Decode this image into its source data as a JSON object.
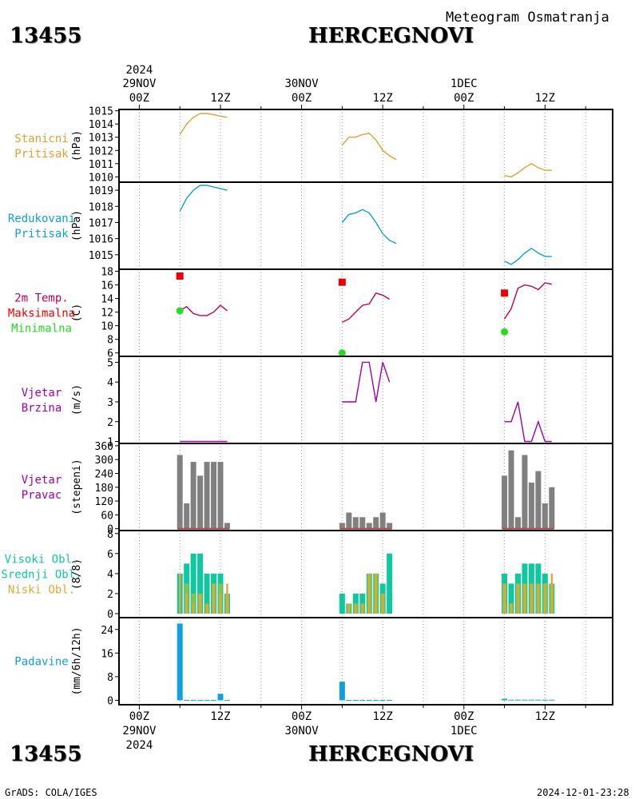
{
  "header": {
    "station_id": "13455",
    "station_name": "HERCEGNOVI",
    "subtitle": "Meteogram Osmatranja"
  },
  "footer": {
    "credit": "GrADS: COLA/IGES",
    "timestamp": "2024-12-01-23:28"
  },
  "colors": {
    "stanicni": "#e0a030",
    "redukovani": "#10a0d0",
    "temp_line": "#c00050",
    "temp_max": "#ee0000",
    "temp_min": "#22dd22",
    "wind": "#a000b0",
    "dir_bar": "#808080",
    "dir_base": "#c04040",
    "visoki": "#10c8a0",
    "srednji": "#90c040",
    "niski": "#e0a838",
    "padavine": "#10a0e0"
  },
  "time_axis": {
    "top_labels": [
      {
        "x": 0,
        "line1": "2024",
        "line2": "29NOV",
        "line3": "00Z"
      },
      {
        "x": 12,
        "line1": "",
        "line2": "",
        "line3": "12Z"
      },
      {
        "x": 24,
        "line1": "",
        "line2": "30NOV",
        "line3": "00Z"
      },
      {
        "x": 36,
        "line1": "",
        "line2": "",
        "line3": "12Z"
      },
      {
        "x": 48,
        "line1": "",
        "line2": "1DEC",
        "line3": "00Z"
      },
      {
        "x": 60,
        "line1": "",
        "line2": "",
        "line3": "12Z"
      }
    ],
    "bottom_labels": [
      {
        "x": 0,
        "line1": "00Z",
        "line2": "29NOV",
        "line3": "2024"
      },
      {
        "x": 12,
        "line1": "12Z",
        "line2": "",
        "line3": ""
      },
      {
        "x": 24,
        "line1": "00Z",
        "line2": "30NOV",
        "line3": ""
      },
      {
        "x": 36,
        "line1": "12Z",
        "line2": "",
        "line3": ""
      },
      {
        "x": 48,
        "line1": "00Z",
        "line2": "1DEC",
        "line3": ""
      },
      {
        "x": 60,
        "line1": "12Z",
        "line2": "",
        "line3": ""
      }
    ],
    "range": [
      -3,
      70
    ]
  },
  "chart_data": [
    {
      "type": "line",
      "panel": "stanicni",
      "labels": [
        "Stanicni",
        "Pritisak"
      ],
      "label_colors": [
        "stanicni",
        "stanicni"
      ],
      "ylabel": "(hPa)",
      "ylim": [
        1009.6,
        1015.1
      ],
      "yticks": [
        1010,
        1011,
        1012,
        1013,
        1014,
        1015
      ],
      "series": [
        {
          "color": "stanicni",
          "points": [
            [
              6,
              1013.2
            ],
            [
              7,
              1014.0
            ],
            [
              8,
              1014.5
            ],
            [
              9,
              1014.8
            ],
            [
              10,
              1014.8
            ],
            [
              11,
              1014.7
            ],
            [
              12,
              1014.6
            ],
            [
              13,
              1014.5
            ]
          ]
        },
        {
          "color": "stanicni",
          "points": [
            [
              30,
              1012.4
            ],
            [
              31,
              1013.0
            ],
            [
              32,
              1013.0
            ],
            [
              33,
              1013.2
            ],
            [
              34,
              1013.3
            ],
            [
              35,
              1012.8
            ],
            [
              36,
              1012.0
            ],
            [
              37,
              1011.6
            ],
            [
              38,
              1011.3
            ]
          ]
        },
        {
          "color": "stanicni",
          "points": [
            [
              54,
              1010.1
            ],
            [
              55,
              1010.0
            ],
            [
              56,
              1010.3
            ],
            [
              57,
              1010.7
            ],
            [
              58,
              1011.0
            ],
            [
              59,
              1010.7
            ],
            [
              60,
              1010.5
            ],
            [
              61,
              1010.5
            ]
          ]
        }
      ]
    },
    {
      "type": "line",
      "panel": "redukovani",
      "labels": [
        "Redukovani",
        "Pritisak"
      ],
      "label_colors": [
        "redukovani",
        "redukovani"
      ],
      "ylabel": "(hPa)",
      "ylim": [
        1014.1,
        1019.5
      ],
      "yticks": [
        1015,
        1016,
        1017,
        1018,
        1019
      ],
      "series": [
        {
          "color": "redukovani",
          "points": [
            [
              6,
              1017.7
            ],
            [
              7,
              1018.5
            ],
            [
              8,
              1019.0
            ],
            [
              9,
              1019.3
            ],
            [
              10,
              1019.3
            ],
            [
              11,
              1019.2
            ],
            [
              12,
              1019.1
            ],
            [
              13,
              1019.0
            ]
          ]
        },
        {
          "color": "redukovani",
          "points": [
            [
              30,
              1017.0
            ],
            [
              31,
              1017.5
            ],
            [
              32,
              1017.6
            ],
            [
              33,
              1017.8
            ],
            [
              34,
              1017.6
            ],
            [
              35,
              1017.0
            ],
            [
              36,
              1016.3
            ],
            [
              37,
              1015.9
            ],
            [
              38,
              1015.7
            ]
          ]
        },
        {
          "color": "redukovani",
          "points": [
            [
              54,
              1014.6
            ],
            [
              55,
              1014.4
            ],
            [
              56,
              1014.7
            ],
            [
              57,
              1015.1
            ],
            [
              58,
              1015.4
            ],
            [
              59,
              1015.1
            ],
            [
              60,
              1014.9
            ],
            [
              61,
              1014.9
            ]
          ]
        }
      ]
    },
    {
      "type": "line",
      "panel": "temp",
      "labels": [
        "2m Temp.",
        "Maksimalna",
        "Minimalna"
      ],
      "label_colors": [
        "temp_line",
        "temp_max",
        "temp_min"
      ],
      "ylabel": "(C)",
      "ylim": [
        5.5,
        18.3
      ],
      "yticks": [
        6,
        8,
        10,
        12,
        14,
        16,
        18
      ],
      "series": [
        {
          "color": "temp_line",
          "points": [
            [
              6,
              12.2
            ],
            [
              7,
              12.8
            ],
            [
              8,
              11.8
            ],
            [
              9,
              11.5
            ],
            [
              10,
              11.5
            ],
            [
              11,
              12.0
            ],
            [
              12,
              13.0
            ],
            [
              13,
              12.2
            ]
          ]
        },
        {
          "color": "temp_line",
          "points": [
            [
              30,
              10.5
            ],
            [
              31,
              11.0
            ],
            [
              32,
              12.0
            ],
            [
              33,
              13.0
            ],
            [
              34,
              13.2
            ],
            [
              35,
              14.8
            ],
            [
              36,
              14.5
            ],
            [
              37,
              13.9
            ]
          ]
        },
        {
          "color": "temp_line",
          "points": [
            [
              54,
              11.0
            ],
            [
              55,
              12.5
            ],
            [
              56,
              15.5
            ],
            [
              57,
              16.0
            ],
            [
              58,
              15.8
            ],
            [
              59,
              15.3
            ],
            [
              60,
              16.3
            ],
            [
              61,
              16.1
            ]
          ]
        }
      ],
      "markers_max": [
        [
          6,
          17.3
        ],
        [
          30,
          16.4
        ],
        [
          54,
          14.8
        ]
      ],
      "markers_min": [
        [
          6,
          12.2
        ],
        [
          30,
          6.0
        ],
        [
          54,
          9.1
        ]
      ]
    },
    {
      "type": "line",
      "panel": "wind_speed",
      "labels": [
        "Vjetar",
        "Brzina"
      ],
      "label_colors": [
        "wind",
        "wind"
      ],
      "ylabel": "(m/s)",
      "ylim": [
        0.9,
        5.3
      ],
      "yticks": [
        1,
        2,
        3,
        4,
        5
      ],
      "series": [
        {
          "color": "wind",
          "points": [
            [
              6,
              1
            ],
            [
              7,
              1
            ],
            [
              8,
              1
            ],
            [
              9,
              1
            ],
            [
              10,
              1
            ],
            [
              11,
              1
            ],
            [
              12,
              1
            ],
            [
              13,
              1
            ]
          ]
        },
        {
          "color": "wind",
          "points": [
            [
              30,
              3
            ],
            [
              31,
              3
            ],
            [
              32,
              3
            ],
            [
              33,
              5
            ],
            [
              34,
              5
            ],
            [
              35,
              3
            ],
            [
              36,
              5
            ],
            [
              37,
              4
            ]
          ]
        },
        {
          "color": "wind",
          "points": [
            [
              54,
              2
            ],
            [
              55,
              2
            ],
            [
              56,
              3
            ],
            [
              57,
              1
            ],
            [
              58,
              1
            ],
            [
              59,
              2
            ],
            [
              60,
              1
            ],
            [
              61,
              1
            ]
          ]
        }
      ]
    },
    {
      "type": "bar",
      "panel": "wind_dir",
      "labels": [
        "Vjetar",
        "Pravac"
      ],
      "label_colors": [
        "wind",
        "wind"
      ],
      "ylabel": "(stepeni)",
      "ylim": [
        -8,
        370
      ],
      "yticks": [
        0,
        60,
        120,
        180,
        240,
        300,
        360
      ],
      "bars": [
        [
          6,
          320
        ],
        [
          7,
          110
        ],
        [
          8,
          290
        ],
        [
          9,
          230
        ],
        [
          10,
          290
        ],
        [
          11,
          290
        ],
        [
          12,
          290
        ],
        [
          13,
          25
        ],
        [
          30,
          25
        ],
        [
          31,
          70
        ],
        [
          32,
          50
        ],
        [
          33,
          50
        ],
        [
          34,
          25
        ],
        [
          35,
          50
        ],
        [
          36,
          70
        ],
        [
          37,
          25
        ],
        [
          54,
          230
        ],
        [
          55,
          340
        ],
        [
          56,
          50
        ],
        [
          57,
          320
        ],
        [
          58,
          200
        ],
        [
          59,
          250
        ],
        [
          60,
          110
        ],
        [
          61,
          180
        ]
      ]
    },
    {
      "type": "bar",
      "panel": "clouds",
      "labels": [
        "Visoki Obl.",
        "Srednji Obl.",
        "Niski Obl."
      ],
      "label_colors": [
        "visoki",
        "visoki",
        "niski"
      ],
      "ylabel": "(8/8)",
      "ylim": [
        -0.4,
        8.3
      ],
      "yticks": [
        0,
        2,
        4,
        6,
        8
      ],
      "cloud_bars": [
        [
          6,
          4,
          0,
          4
        ],
        [
          7,
          5,
          3,
          2
        ],
        [
          8,
          6,
          2,
          1
        ],
        [
          9,
          6,
          2,
          2
        ],
        [
          10,
          4,
          1,
          1
        ],
        [
          11,
          4,
          3,
          3
        ],
        [
          12,
          4,
          3,
          2
        ],
        [
          13,
          2,
          2,
          3
        ],
        [
          30,
          2,
          0,
          0
        ],
        [
          31,
          1,
          1,
          1
        ],
        [
          32,
          2,
          1,
          1
        ],
        [
          33,
          2,
          1,
          1
        ],
        [
          34,
          4,
          4,
          4
        ],
        [
          35,
          4,
          4,
          4
        ],
        [
          36,
          3,
          2,
          2
        ],
        [
          37,
          6,
          0,
          0
        ],
        [
          54,
          4,
          3,
          3
        ],
        [
          55,
          3,
          1,
          1
        ],
        [
          56,
          4,
          3,
          3
        ],
        [
          57,
          5,
          3,
          3
        ],
        [
          58,
          5,
          3,
          3
        ],
        [
          59,
          5,
          3,
          3
        ],
        [
          60,
          4,
          3,
          3
        ],
        [
          61,
          3,
          3,
          4
        ]
      ]
    },
    {
      "type": "bar",
      "panel": "padavine",
      "labels": [
        "Padavine"
      ],
      "label_colors": [
        "padavine"
      ],
      "ylabel": "(mm/6h/12h)",
      "ylim": [
        -1.5,
        28
      ],
      "yticks": [
        0,
        8,
        16,
        24
      ],
      "bars": [
        [
          6,
          26
        ],
        [
          7,
          0.1
        ],
        [
          8,
          0.1
        ],
        [
          9,
          0.1
        ],
        [
          10,
          0.1
        ],
        [
          11,
          0.1
        ],
        [
          12,
          2.2
        ],
        [
          13,
          0.1
        ],
        [
          30,
          6.3
        ],
        [
          31,
          0.1
        ],
        [
          32,
          0.1
        ],
        [
          33,
          0.1
        ],
        [
          34,
          0.1
        ],
        [
          35,
          0.1
        ],
        [
          36,
          0.1
        ],
        [
          37,
          0.1
        ],
        [
          54,
          0.5
        ],
        [
          55,
          0.2
        ],
        [
          56,
          0.2
        ],
        [
          57,
          0.2
        ],
        [
          58,
          0.2
        ],
        [
          59,
          0.2
        ],
        [
          60,
          0.2
        ],
        [
          61,
          0.2
        ]
      ]
    }
  ]
}
